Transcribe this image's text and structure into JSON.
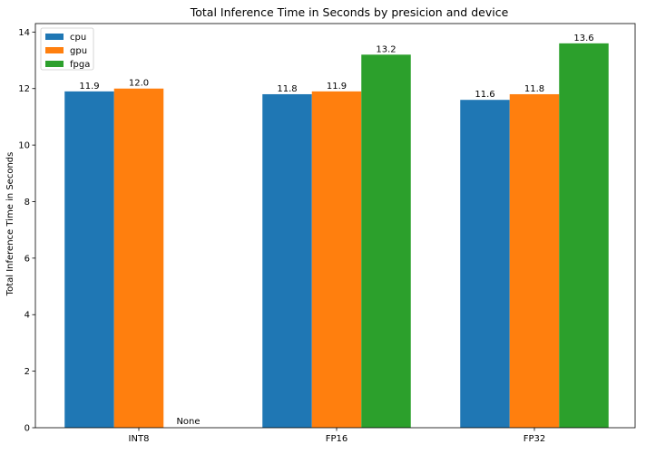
{
  "chart_data": {
    "type": "bar",
    "title": "Total Inference Time in Seconds by presicion and device",
    "xlabel": "",
    "ylabel": "Total Inference Time in Seconds",
    "categories": [
      "INT8",
      "FP16",
      "FP32"
    ],
    "series": [
      {
        "name": "cpu",
        "color": "#1f77b4",
        "values": [
          11.9,
          11.8,
          11.6
        ],
        "labels": [
          "11.9",
          "11.8",
          "11.6"
        ]
      },
      {
        "name": "gpu",
        "color": "#ff7f0e",
        "values": [
          12.0,
          11.9,
          11.8
        ],
        "labels": [
          "12.0",
          "11.9",
          "11.8"
        ]
      },
      {
        "name": "fpga",
        "color": "#2ca02c",
        "values": [
          null,
          13.2,
          13.6
        ],
        "labels": [
          "None",
          "13.2",
          "13.6"
        ]
      }
    ],
    "ylim": [
      0,
      14.3
    ],
    "yticks": [
      0,
      2,
      4,
      6,
      8,
      10,
      12,
      14
    ],
    "grid": false,
    "legend_position": "top-left"
  }
}
